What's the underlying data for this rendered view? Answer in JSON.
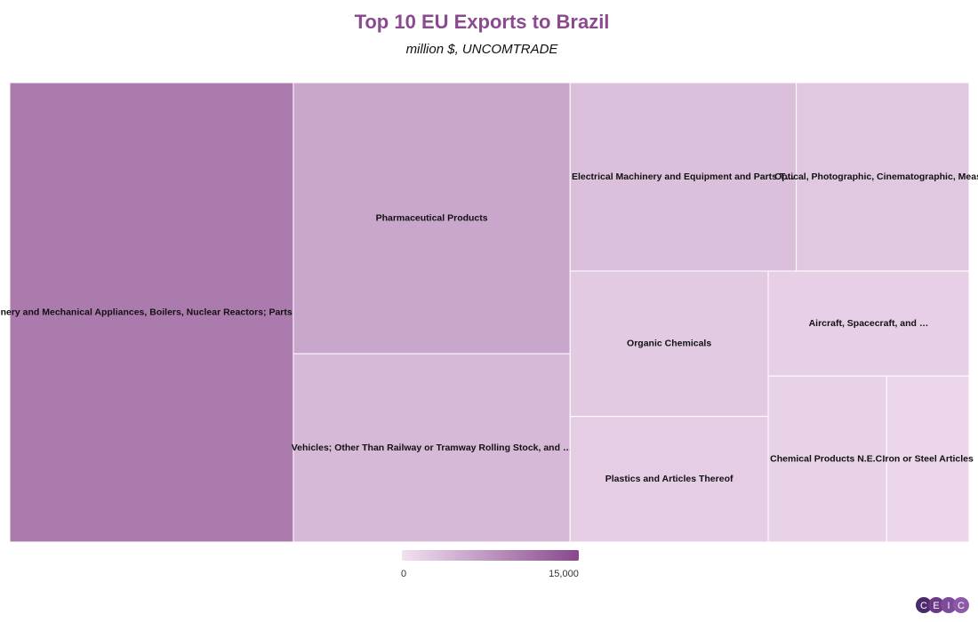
{
  "chart_data": {
    "type": "treemap",
    "title": "Top 10 EU Exports to Brazil",
    "subtitle": "million $, UNCOMTRADE",
    "categories": [
      "Machinery and Mechanical Appliances, Boilers, Nuclear Reactors; Parts Thereof",
      "Pharmaceutical Products",
      "Vehicles; Other Than Railway or Tramway Rolling Stock, and …",
      "Electrical Machinery and Equipment and Parts T…",
      "Optical, Photographic, Cinematographic, Meas…",
      "Organic Chemicals",
      "Plastics and Articles Thereof",
      "Aircraft, Spacecraft, and …",
      "Chemical Products N.E.C.",
      "Iron or Steel Articles"
    ],
    "values": [
      10000,
      5760,
      4000,
      3270,
      2500,
      2210,
      1910,
      1620,
      1510,
      1050
    ],
    "colorscale": [
      "#f2e1f2",
      "#88488c"
    ],
    "colorlim": [
      0,
      15000
    ],
    "colorticks": [
      0,
      {
        "value": 15000,
        "label": "15,000"
      }
    ]
  },
  "logo": [
    "C",
    "E",
    "I",
    "C"
  ]
}
